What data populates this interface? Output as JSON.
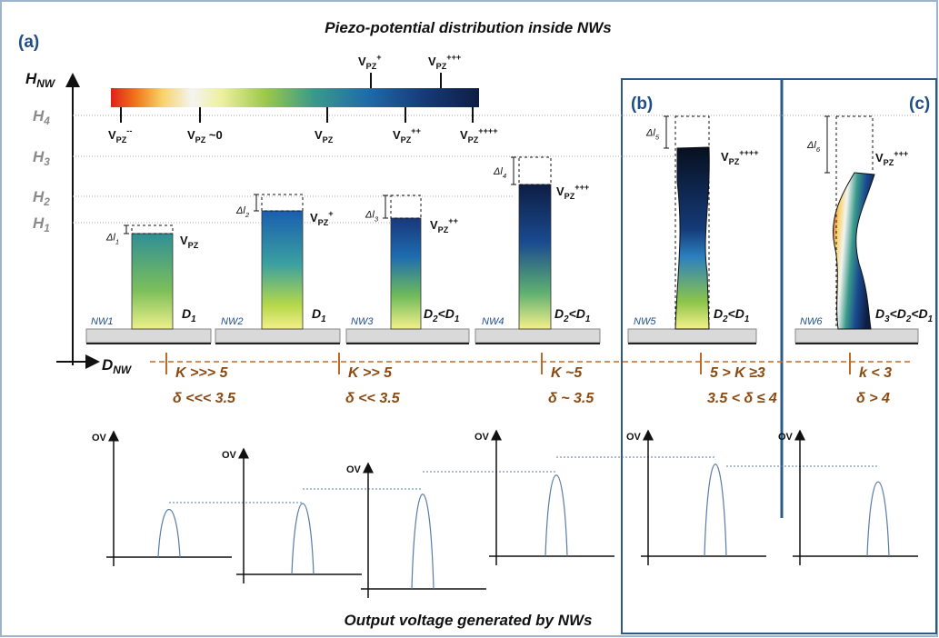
{
  "title": "Piezo-potential distribution inside NWs",
  "footer": "Output voltage generated by NWs",
  "panel_labels": {
    "a": "(a)",
    "b": "(b)",
    "c": "(c)"
  },
  "y_axis": [
    {
      "t": "H"
    },
    {
      "t": "NW",
      "s": "sub"
    }
  ],
  "x_axis": [
    {
      "t": "D"
    },
    {
      "t": "NW",
      "s": "sub"
    }
  ],
  "height_levels": [
    [
      {
        "t": "H"
      },
      {
        "t": "4",
        "s": "sub"
      }
    ],
    [
      {
        "t": "H"
      },
      {
        "t": "3",
        "s": "sub"
      }
    ],
    [
      {
        "t": "H"
      },
      {
        "t": "2",
        "s": "sub"
      }
    ],
    [
      {
        "t": "H"
      },
      {
        "t": "1",
        "s": "sub"
      }
    ]
  ],
  "colorbar_below": [
    [
      {
        "t": "V"
      },
      {
        "t": "PZ",
        "s": "sub"
      },
      {
        "t": "--",
        "s": "sup"
      }
    ],
    [
      {
        "t": "V"
      },
      {
        "t": "PZ",
        "s": "sub"
      },
      {
        "t": " ~0"
      }
    ],
    [
      {
        "t": "V"
      },
      {
        "t": "PZ",
        "s": "sub"
      }
    ],
    [
      {
        "t": "V"
      },
      {
        "t": "PZ",
        "s": "sub"
      },
      {
        "t": "++",
        "s": "sup"
      }
    ],
    [
      {
        "t": "V"
      },
      {
        "t": "PZ",
        "s": "sub"
      },
      {
        "t": "++++",
        "s": "sup"
      }
    ]
  ],
  "colorbar_above": [
    [
      {
        "t": "V"
      },
      {
        "t": "PZ",
        "s": "sub"
      },
      {
        "t": "+",
        "s": "sup"
      }
    ],
    [
      {
        "t": "V"
      },
      {
        "t": "PZ",
        "s": "sub"
      },
      {
        "t": "+++",
        "s": "sup"
      }
    ]
  ],
  "nanowires": [
    {
      "label": "NW1",
      "delta_l": [
        {
          "t": "Δl"
        },
        {
          "t": "1",
          "s": "sub"
        }
      ],
      "potential": [
        {
          "t": "V"
        },
        {
          "t": "PZ",
          "s": "sub"
        }
      ],
      "diameter": [
        {
          "t": "D"
        },
        {
          "t": "1",
          "s": "sub"
        }
      ]
    },
    {
      "label": "NW2",
      "delta_l": [
        {
          "t": "Δl"
        },
        {
          "t": "2",
          "s": "sub"
        }
      ],
      "potential": [
        {
          "t": "V"
        },
        {
          "t": "PZ",
          "s": "sub"
        },
        {
          "t": "+",
          "s": "sup"
        }
      ],
      "diameter": [
        {
          "t": "D"
        },
        {
          "t": "1",
          "s": "sub"
        }
      ]
    },
    {
      "label": "NW3",
      "delta_l": [
        {
          "t": "Δl"
        },
        {
          "t": "3",
          "s": "sub"
        }
      ],
      "potential": [
        {
          "t": "V"
        },
        {
          "t": "PZ",
          "s": "sub"
        },
        {
          "t": "++",
          "s": "sup"
        }
      ],
      "diameter": [
        {
          "t": "D"
        },
        {
          "t": "2",
          "s": "sub"
        },
        {
          "t": "<D"
        },
        {
          "t": "1",
          "s": "sub"
        }
      ]
    },
    {
      "label": "NW4",
      "delta_l": [
        {
          "t": "Δl"
        },
        {
          "t": "4",
          "s": "sub"
        }
      ],
      "potential": [
        {
          "t": "V"
        },
        {
          "t": "PZ",
          "s": "sub"
        },
        {
          "t": "+++",
          "s": "sup"
        }
      ],
      "diameter": [
        {
          "t": "D"
        },
        {
          "t": "2",
          "s": "sub"
        },
        {
          "t": "<D"
        },
        {
          "t": "1",
          "s": "sub"
        }
      ]
    },
    {
      "label": "NW5",
      "delta_l": [
        {
          "t": "Δl"
        },
        {
          "t": "5",
          "s": "sub"
        }
      ],
      "potential": [
        {
          "t": "V"
        },
        {
          "t": "PZ",
          "s": "sub"
        },
        {
          "t": "++++",
          "s": "sup"
        }
      ],
      "diameter": [
        {
          "t": "D"
        },
        {
          "t": "2",
          "s": "sub"
        },
        {
          "t": "<D"
        },
        {
          "t": "1",
          "s": "sub"
        }
      ]
    },
    {
      "label": "NW6",
      "delta_l": [
        {
          "t": "Δl"
        },
        {
          "t": "6",
          "s": "sub"
        }
      ],
      "potential": [
        {
          "t": "V"
        },
        {
          "t": "PZ",
          "s": "sub"
        },
        {
          "t": "+++",
          "s": "sup"
        }
      ],
      "diameter": [
        {
          "t": "D"
        },
        {
          "t": "3",
          "s": "sub"
        },
        {
          "t": "<D"
        },
        {
          "t": "2",
          "s": "sub"
        },
        {
          "t": "<D"
        },
        {
          "t": "1",
          "s": "sub"
        }
      ]
    }
  ],
  "regimes": [
    {
      "k": "K >>> 5",
      "delta": "δ <<< 3.5"
    },
    {
      "k": "K >> 5",
      "delta": "δ << 3.5"
    },
    {
      "k": "K ~5",
      "delta": "δ ~ 3.5"
    },
    {
      "k": "5 > K ≥3",
      "delta": "3.5 < δ ≤ 4"
    },
    {
      "k": "k < 3",
      "delta": "δ > 4"
    }
  ],
  "output_plots": [
    "OV",
    "OV",
    "OV",
    "OV",
    "OV",
    "OV"
  ]
}
